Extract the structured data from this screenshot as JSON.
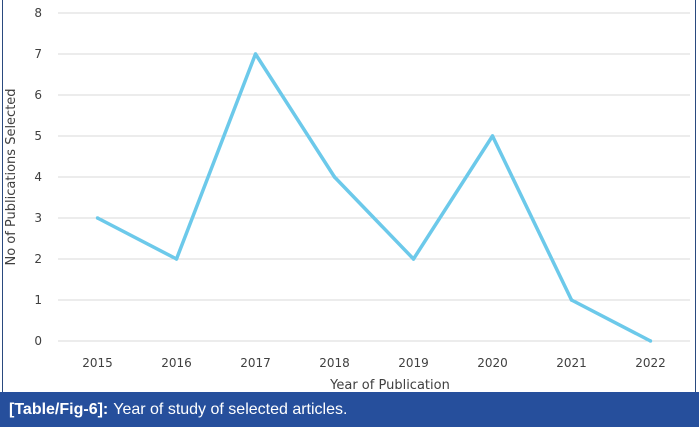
{
  "chart_data": {
    "type": "line",
    "title": "",
    "xlabel": "Year of Publication",
    "ylabel": "No of Publications Selected",
    "categories": [
      "2015",
      "2016",
      "2017",
      "2018",
      "2019",
      "2020",
      "2021",
      "2022"
    ],
    "series": [
      {
        "name": "Publications",
        "values": [
          3,
          2,
          7,
          4,
          2,
          5,
          1,
          0
        ],
        "color": "#6cc9ea"
      }
    ],
    "ylim": [
      0,
      8
    ],
    "yticks": [
      "0",
      "1",
      "2",
      "3",
      "4",
      "5",
      "6",
      "7",
      "8"
    ],
    "grid": true,
    "legend": "none"
  },
  "caption": {
    "label": "[Table/Fig-6]:",
    "text": "Year of study of selected articles."
  },
  "colors": {
    "caption_bg": "#264f9c",
    "grid": "#d9d9d9",
    "line": "#6cc9ea"
  }
}
